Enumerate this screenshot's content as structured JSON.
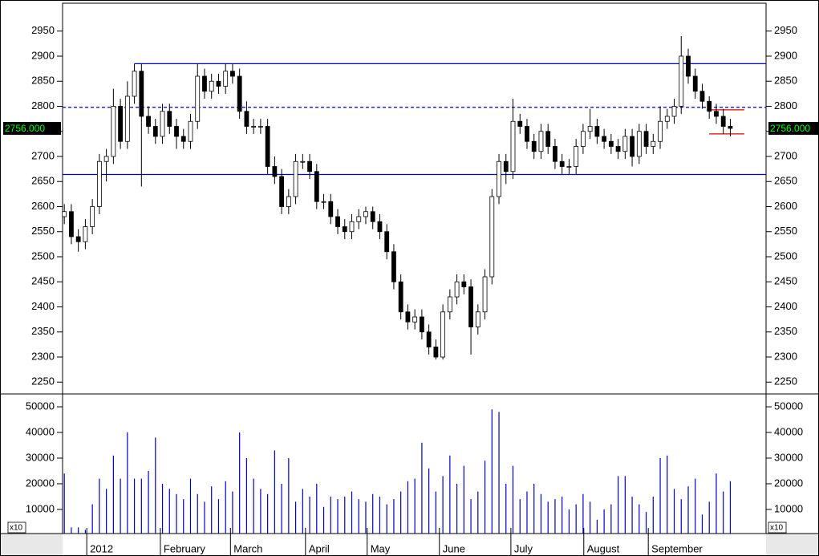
{
  "chart_data": [
    {
      "type": "candlestick",
      "open": [
        2580,
        2590,
        2540,
        2530,
        2560,
        2600,
        2690,
        2700,
        2800,
        2730,
        2820,
        2870,
        2780,
        2760,
        2740,
        2790,
        2760,
        2740,
        2730,
        2770,
        2860,
        2830,
        2850,
        2840,
        2870,
        2860,
        2790,
        2760,
        2760,
        2760,
        2680,
        2660,
        2600,
        2620,
        2690,
        2690,
        2670,
        2610,
        2610,
        2580,
        2560,
        2550,
        2570,
        2580,
        2590,
        2570,
        2550,
        2510,
        2450,
        2390,
        2370,
        2380,
        2350,
        2320,
        2300,
        2390,
        2420,
        2450,
        2440,
        2360,
        2390,
        2460,
        2620,
        2690,
        2670,
        2770,
        2760,
        2730,
        2710,
        2750,
        2720,
        2690,
        2680,
        2680,
        2720,
        2750,
        2760,
        2740,
        2730,
        2720,
        2710,
        2740,
        2700,
        2750,
        2720,
        2730,
        2770,
        2780,
        2800,
        2900,
        2860,
        2830,
        2810,
        2790,
        2780,
        2760
      ],
      "high": [
        2605,
        2605,
        2555,
        2575,
        2615,
        2705,
        2715,
        2835,
        2815,
        2850,
        2885,
        2885,
        2800,
        2775,
        2805,
        2805,
        2775,
        2755,
        2785,
        2885,
        2875,
        2865,
        2865,
        2885,
        2885,
        2875,
        2810,
        2775,
        2775,
        2775,
        2700,
        2675,
        2635,
        2705,
        2705,
        2705,
        2685,
        2625,
        2625,
        2595,
        2575,
        2585,
        2595,
        2600,
        2600,
        2585,
        2565,
        2525,
        2465,
        2405,
        2395,
        2395,
        2365,
        2335,
        2405,
        2435,
        2465,
        2465,
        2455,
        2405,
        2475,
        2635,
        2705,
        2705,
        2815,
        2785,
        2775,
        2745,
        2765,
        2765,
        2735,
        2705,
        2695,
        2735,
        2765,
        2795,
        2775,
        2755,
        2745,
        2735,
        2755,
        2755,
        2765,
        2765,
        2745,
        2800,
        2795,
        2815,
        2940,
        2915,
        2875,
        2845,
        2820,
        2805,
        2795,
        2775
      ],
      "low": [
        2565,
        2525,
        2510,
        2515,
        2545,
        2585,
        2650,
        2685,
        2715,
        2715,
        2805,
        2640,
        2745,
        2725,
        2725,
        2745,
        2715,
        2715,
        2715,
        2755,
        2815,
        2815,
        2825,
        2825,
        2845,
        2775,
        2745,
        2745,
        2745,
        2665,
        2645,
        2585,
        2585,
        2605,
        2675,
        2655,
        2595,
        2595,
        2565,
        2545,
        2535,
        2535,
        2555,
        2565,
        2555,
        2535,
        2495,
        2435,
        2375,
        2355,
        2355,
        2335,
        2305,
        2295,
        2295,
        2375,
        2405,
        2425,
        2305,
        2345,
        2375,
        2445,
        2605,
        2645,
        2655,
        2745,
        2715,
        2695,
        2695,
        2705,
        2675,
        2665,
        2665,
        2665,
        2705,
        2735,
        2725,
        2715,
        2705,
        2695,
        2695,
        2680,
        2685,
        2705,
        2705,
        2715,
        2755,
        2765,
        2785,
        2845,
        2815,
        2795,
        2775,
        2765,
        2745,
        2740
      ],
      "close": [
        2590,
        2540,
        2530,
        2560,
        2600,
        2690,
        2700,
        2800,
        2730,
        2820,
        2870,
        2780,
        2760,
        2740,
        2790,
        2760,
        2740,
        2730,
        2770,
        2860,
        2830,
        2850,
        2840,
        2870,
        2860,
        2790,
        2760,
        2760,
        2760,
        2680,
        2660,
        2600,
        2620,
        2690,
        2690,
        2670,
        2610,
        2610,
        2580,
        2560,
        2550,
        2570,
        2580,
        2590,
        2570,
        2550,
        2510,
        2450,
        2390,
        2370,
        2380,
        2350,
        2320,
        2300,
        2390,
        2420,
        2450,
        2440,
        2360,
        2390,
        2460,
        2620,
        2690,
        2670,
        2770,
        2760,
        2730,
        2710,
        2750,
        2720,
        2690,
        2680,
        2680,
        2720,
        2750,
        2760,
        2740,
        2730,
        2720,
        2710,
        2740,
        2700,
        2750,
        2720,
        2730,
        2770,
        2780,
        2800,
        2900,
        2860,
        2830,
        2810,
        2790,
        2780,
        2760,
        2756
      ],
      "xlim": [
        -0.25,
        100.1
      ],
      "xticks": [
        {
          "value": 3.2,
          "label": "2012"
        },
        {
          "value": 13.7,
          "label": "February"
        },
        {
          "value": 23.7,
          "label": "March"
        },
        {
          "value": 34.4,
          "label": "April"
        },
        {
          "value": 43.2,
          "label": "May"
        },
        {
          "value": 53.5,
          "label": "June"
        },
        {
          "value": 63.7,
          "label": "July"
        },
        {
          "value": 74.1,
          "label": "August"
        },
        {
          "value": 83.3,
          "label": "September"
        }
      ],
      "ylim": [
        2228,
        3004
      ],
      "yticks": [
        2250,
        2300,
        2350,
        2400,
        2450,
        2500,
        2550,
        2600,
        2650,
        2700,
        2750,
        2800,
        2850,
        2900,
        2950
      ],
      "levels": [
        {
          "value": 2885,
          "start": 10,
          "style": "solid",
          "color": "#0000cc"
        },
        {
          "value": 2798,
          "style": "dashed",
          "color": "#0000cc"
        },
        {
          "value": 2664,
          "style": "solid",
          "color": "#0000cc"
        },
        {
          "value": 2793,
          "start": 92,
          "end": 97,
          "style": "solid",
          "color": "#e00000"
        },
        {
          "value": 2745,
          "start": 92,
          "end": 97,
          "style": "solid",
          "color": "#e00000"
        }
      ],
      "last_price": {
        "value": 2756,
        "label": "2756.000"
      }
    },
    {
      "type": "bar",
      "values": [
        24000,
        3000,
        3000,
        2000,
        12000,
        22000,
        18000,
        31000,
        22000,
        40000,
        22000,
        22000,
        25000,
        38000,
        20000,
        18000,
        16000,
        14000,
        22000,
        16000,
        13000,
        19000,
        14000,
        21000,
        17000,
        40000,
        30000,
        22000,
        18000,
        16000,
        33000,
        20000,
        30000,
        13000,
        18000,
        15000,
        20000,
        11000,
        15000,
        14000,
        15000,
        17000,
        14000,
        13000,
        16000,
        15000,
        12000,
        14000,
        17000,
        21000,
        22000,
        36000,
        26000,
        17000,
        23000,
        31000,
        20000,
        27000,
        14000,
        17000,
        29000,
        49000,
        48000,
        20000,
        27000,
        14000,
        17000,
        20000,
        16000,
        13000,
        14000,
        15000,
        10000,
        12000,
        16000,
        13000,
        6000,
        10000,
        12000,
        23000,
        23000,
        15000,
        12000,
        9000,
        15000,
        30000,
        31000,
        18000,
        14000,
        19000,
        22000,
        8000,
        13000,
        24000,
        17000,
        21000
      ],
      "color": "#0000cc",
      "ylim": [
        600,
        54700
      ],
      "yticks": [
        10000,
        20000,
        30000,
        40000,
        50000
      ],
      "unit_label": "x10"
    }
  ]
}
